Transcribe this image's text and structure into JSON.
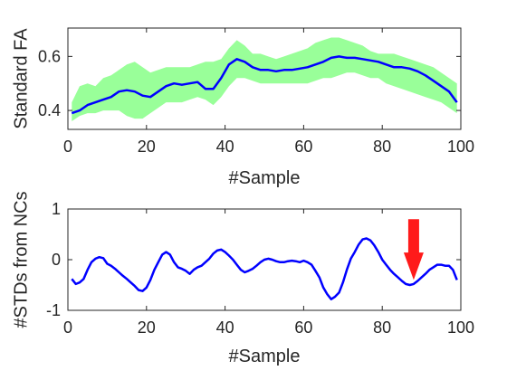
{
  "chart_data": [
    {
      "type": "line",
      "xlabel": "#Sample",
      "ylabel": "Standard FA",
      "xlim": [
        0,
        100
      ],
      "ylim": [
        0.33,
        0.705
      ],
      "xticks": [
        "0",
        "20",
        "40",
        "60",
        "80",
        "100"
      ],
      "yticks": [
        "0.4",
        "0.6"
      ],
      "band_color": "#99ff99",
      "line_color": "#0000ff",
      "series": [
        {
          "x": [
            1,
            3,
            5,
            7,
            9,
            11,
            13,
            15,
            17,
            19,
            21,
            23,
            25,
            27,
            29,
            31,
            33,
            35,
            37,
            39,
            41,
            43,
            45,
            47,
            49,
            51,
            53,
            55,
            57,
            59,
            61,
            63,
            65,
            67,
            69,
            71,
            73,
            75,
            77,
            79,
            81,
            83,
            85,
            87,
            89,
            91,
            93,
            95,
            97,
            99
          ],
          "values": [
            0.39,
            0.4,
            0.42,
            0.43,
            0.44,
            0.45,
            0.47,
            0.475,
            0.47,
            0.455,
            0.45,
            0.47,
            0.49,
            0.5,
            0.495,
            0.5,
            0.505,
            0.48,
            0.48,
            0.52,
            0.57,
            0.59,
            0.58,
            0.56,
            0.55,
            0.55,
            0.545,
            0.55,
            0.55,
            0.555,
            0.56,
            0.57,
            0.58,
            0.595,
            0.6,
            0.595,
            0.595,
            0.59,
            0.585,
            0.58,
            0.57,
            0.56,
            0.56,
            0.555,
            0.545,
            0.53,
            0.51,
            0.49,
            0.47,
            0.43
          ],
          "upper": [
            0.43,
            0.49,
            0.5,
            0.49,
            0.52,
            0.53,
            0.55,
            0.57,
            0.58,
            0.56,
            0.54,
            0.55,
            0.56,
            0.56,
            0.56,
            0.56,
            0.57,
            0.58,
            0.58,
            0.59,
            0.63,
            0.66,
            0.64,
            0.61,
            0.61,
            0.6,
            0.59,
            0.6,
            0.61,
            0.62,
            0.63,
            0.65,
            0.66,
            0.67,
            0.67,
            0.66,
            0.65,
            0.64,
            0.62,
            0.61,
            0.61,
            0.61,
            0.6,
            0.59,
            0.58,
            0.57,
            0.56,
            0.54,
            0.52,
            0.5
          ],
          "lower": [
            0.36,
            0.38,
            0.39,
            0.39,
            0.4,
            0.4,
            0.4,
            0.38,
            0.37,
            0.37,
            0.39,
            0.41,
            0.43,
            0.43,
            0.43,
            0.44,
            0.45,
            0.44,
            0.42,
            0.45,
            0.49,
            0.52,
            0.52,
            0.51,
            0.5,
            0.5,
            0.5,
            0.5,
            0.5,
            0.5,
            0.5,
            0.51,
            0.52,
            0.52,
            0.53,
            0.54,
            0.54,
            0.53,
            0.52,
            0.52,
            0.5,
            0.49,
            0.48,
            0.47,
            0.46,
            0.45,
            0.44,
            0.43,
            0.41,
            0.39
          ]
        }
      ]
    },
    {
      "type": "line",
      "xlabel": "#Sample",
      "ylabel": "#STDs from NCs",
      "xlim": [
        0,
        100
      ],
      "ylim": [
        -1,
        1
      ],
      "xticks": [
        "0",
        "20",
        "40",
        "60",
        "80",
        "100"
      ],
      "yticks": [
        "-1",
        "0",
        "1"
      ],
      "line_color": "#0000ff",
      "series": [
        {
          "x": [
            1,
            2,
            3,
            4,
            5,
            6,
            7,
            8,
            9,
            10,
            11,
            12,
            13,
            14,
            15,
            16,
            17,
            18,
            19,
            20,
            21,
            22,
            23,
            24,
            25,
            26,
            27,
            28,
            29,
            30,
            31,
            32,
            33,
            34,
            35,
            36,
            37,
            38,
            39,
            40,
            41,
            42,
            43,
            44,
            45,
            46,
            47,
            48,
            49,
            50,
            51,
            52,
            53,
            54,
            55,
            56,
            57,
            58,
            59,
            60,
            61,
            62,
            63,
            64,
            65,
            66,
            67,
            68,
            69,
            70,
            71,
            72,
            73,
            74,
            75,
            76,
            77,
            78,
            79,
            80,
            81,
            82,
            83,
            84,
            85,
            86,
            87,
            88,
            89,
            90,
            91,
            92,
            93,
            94,
            95,
            96,
            97,
            98,
            99
          ],
          "values": [
            -0.38,
            -0.48,
            -0.45,
            -0.38,
            -0.2,
            -0.05,
            0.02,
            0.05,
            0.03,
            -0.08,
            -0.12,
            -0.18,
            -0.25,
            -0.32,
            -0.38,
            -0.45,
            -0.52,
            -0.6,
            -0.62,
            -0.55,
            -0.4,
            -0.2,
            -0.05,
            0.1,
            0.15,
            0.1,
            -0.05,
            -0.15,
            -0.18,
            -0.22,
            -0.28,
            -0.2,
            -0.15,
            -0.12,
            -0.05,
            0.02,
            0.12,
            0.18,
            0.2,
            0.15,
            0.08,
            0.0,
            -0.1,
            -0.2,
            -0.25,
            -0.22,
            -0.18,
            -0.12,
            -0.05,
            0.0,
            0.02,
            0.0,
            -0.03,
            -0.05,
            -0.05,
            -0.03,
            -0.02,
            -0.03,
            -0.05,
            -0.02,
            -0.05,
            -0.1,
            -0.22,
            -0.35,
            -0.55,
            -0.68,
            -0.78,
            -0.73,
            -0.65,
            -0.45,
            -0.2,
            0.02,
            0.15,
            0.3,
            0.4,
            0.42,
            0.38,
            0.28,
            0.15,
            0.0,
            -0.1,
            -0.2,
            -0.28,
            -0.35,
            -0.42,
            -0.48,
            -0.5,
            -0.48,
            -0.42,
            -0.35,
            -0.28,
            -0.2,
            -0.15,
            -0.1,
            -0.1,
            -0.12,
            -0.12,
            -0.2,
            -0.4
          ]
        }
      ],
      "annotation": {
        "type": "down-arrow",
        "x": 88,
        "y_top": 0.8,
        "y_tip": -0.4,
        "color": "#ff1a1a"
      }
    }
  ]
}
